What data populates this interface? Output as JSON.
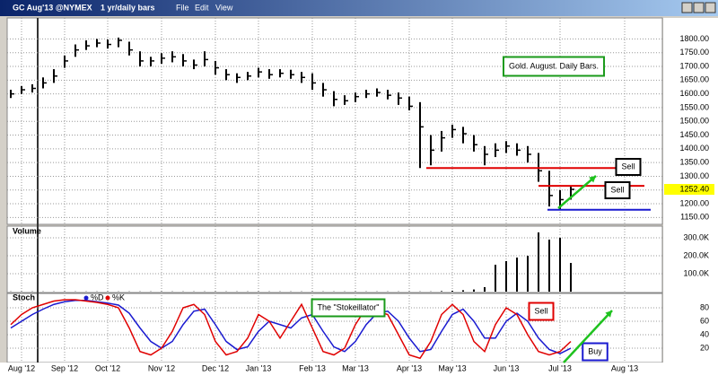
{
  "window": {
    "symbol": "GC Aug'13 @NYMEX",
    "interval": "1 yr/daily bars",
    "menus": [
      "File",
      "Edit",
      "View"
    ]
  },
  "chart_data": [
    {
      "type": "ohlc",
      "color": "#000000",
      "high": [
        1615,
        1628,
        1635,
        1660,
        1690,
        1740,
        1780,
        1795,
        1800,
        1798,
        1805,
        1790,
        1755,
        1735,
        1748,
        1755,
        1745,
        1725,
        1755,
        1720,
        1690,
        1675,
        1680,
        1695,
        1690,
        1690,
        1688,
        1680,
        1675,
        1640,
        1610,
        1595,
        1605,
        1615,
        1620,
        1615,
        1605,
        1590,
        1570,
        1450,
        1465,
        1488,
        1480,
        1450,
        1410,
        1420,
        1428,
        1420,
        1410,
        1385,
        1320,
        1250,
        1262,
        null,
        null,
        null,
        null,
        null,
        null
      ],
      "low": [
        1585,
        1600,
        1605,
        1620,
        1640,
        1695,
        1735,
        1760,
        1770,
        1765,
        1770,
        1740,
        1700,
        1700,
        1710,
        1715,
        1700,
        1690,
        1700,
        1670,
        1650,
        1640,
        1650,
        1660,
        1655,
        1660,
        1655,
        1640,
        1615,
        1590,
        1555,
        1560,
        1570,
        1585,
        1590,
        1580,
        1560,
        1540,
        1330,
        1340,
        1390,
        1440,
        1420,
        1390,
        1340,
        1370,
        1385,
        1375,
        1350,
        1280,
        1190,
        1180,
        1215,
        null,
        null,
        null,
        null,
        null,
        null
      ],
      "close": [
        1600,
        1615,
        1620,
        1640,
        1665,
        1720,
        1760,
        1775,
        1785,
        1780,
        1795,
        1760,
        1720,
        1720,
        1730,
        1735,
        1720,
        1705,
        1725,
        1695,
        1670,
        1660,
        1665,
        1680,
        1670,
        1675,
        1670,
        1660,
        1640,
        1615,
        1580,
        1575,
        1590,
        1600,
        1605,
        1595,
        1585,
        1555,
        1480,
        1395,
        1440,
        1470,
        1455,
        1415,
        1380,
        1395,
        1410,
        1395,
        1380,
        1320,
        1230,
        1215,
        1252.4,
        null,
        null,
        null,
        null,
        null,
        null
      ],
      "last_price": {
        "value": 1252.4,
        "label": "1252.40"
      },
      "ylim": [
        1125,
        1870
      ],
      "yticks": [
        {
          "value": 1150,
          "label": "1150.00"
        },
        {
          "value": 1200,
          "label": "1200.00"
        },
        {
          "value": 1250,
          "label": "1250.00"
        },
        {
          "value": 1300,
          "label": "1300.00"
        },
        {
          "value": 1350,
          "label": "1350.00"
        },
        {
          "value": 1400,
          "label": "1400.00"
        },
        {
          "value": 1450,
          "label": "1450.00"
        },
        {
          "value": 1500,
          "label": "1500.00"
        },
        {
          "value": 1550,
          "label": "1550.00"
        },
        {
          "value": 1600,
          "label": "1600.00"
        },
        {
          "value": 1650,
          "label": "1650.00"
        },
        {
          "value": 1700,
          "label": "1700.00"
        },
        {
          "value": 1750,
          "label": "1750.00"
        },
        {
          "value": 1800,
          "label": "1800.00"
        }
      ],
      "hlines": [
        {
          "value": 1330,
          "color": "#e00000"
        },
        {
          "value": 1265,
          "color": "#e00000"
        },
        {
          "value": 1178,
          "color": "#1a1ad0"
        }
      ],
      "annotations": [
        "Gold. August. Daily Bars.",
        "Sell",
        "Sell"
      ],
      "grid": true
    },
    {
      "type": "bar",
      "title": "Volume",
      "color": "#000000",
      "values": [
        1000,
        1000,
        1000,
        1000,
        1000,
        1000,
        1000,
        1000,
        1000,
        1000,
        1000,
        1000,
        1000,
        1000,
        1000,
        1000,
        1000,
        1000,
        1000,
        1000,
        1000,
        1000,
        1000,
        1000,
        1000,
        1000,
        1000,
        1000,
        1000,
        1000,
        1000,
        1000,
        1000,
        1000,
        1000,
        1000,
        1000,
        1000,
        1000,
        1000,
        3000,
        5000,
        8000,
        12000,
        25000,
        150000,
        170000,
        190000,
        200000,
        330000,
        290000,
        300000,
        160000,
        null,
        null,
        null,
        null,
        null,
        null
      ],
      "ylim": [
        0,
        355000
      ],
      "yticks": [
        {
          "value": 100000,
          "label": "100.0K"
        },
        {
          "value": 200000,
          "label": "200.0K"
        },
        {
          "value": 300000,
          "label": "300.0K"
        }
      ],
      "grid": true
    },
    {
      "type": "line",
      "title": "Stoch",
      "categories": [
        null,
        "Aug '12",
        null,
        null,
        null,
        "Sep '12",
        null,
        null,
        null,
        "Oct '12",
        null,
        null,
        null,
        null,
        "Nov '12",
        null,
        null,
        null,
        null,
        "Dec '12",
        null,
        null,
        null,
        "Jan '13",
        null,
        null,
        null,
        null,
        "Feb '13",
        null,
        null,
        null,
        "Mar '13",
        null,
        null,
        null,
        null,
        "Apr '13",
        null,
        null,
        null,
        "May '13",
        null,
        null,
        null,
        null,
        "Jun '13",
        null,
        null,
        null,
        null,
        "Jul '13",
        null,
        null,
        null,
        null,
        null,
        "Aug '13",
        null
      ],
      "series": [
        {
          "name": "%D",
          "color": "#1a1ad0",
          "values": [
            50,
            60,
            70,
            78,
            85,
            89,
            91,
            91,
            89,
            87,
            84,
            72,
            50,
            30,
            20,
            30,
            55,
            75,
            78,
            55,
            30,
            18,
            22,
            45,
            60,
            55,
            50,
            65,
            70,
            45,
            22,
            15,
            30,
            55,
            72,
            75,
            60,
            35,
            15,
            18,
            45,
            70,
            78,
            60,
            35,
            35,
            60,
            72,
            60,
            35,
            18,
            12,
            20,
            null,
            null,
            null,
            null,
            null,
            null
          ]
        },
        {
          "name": "%K",
          "color": "#e00000",
          "values": [
            55,
            70,
            80,
            85,
            90,
            92,
            92,
            90,
            88,
            85,
            80,
            50,
            15,
            10,
            20,
            45,
            80,
            85,
            70,
            30,
            10,
            15,
            35,
            70,
            60,
            35,
            60,
            85,
            50,
            15,
            10,
            20,
            55,
            80,
            75,
            70,
            40,
            10,
            5,
            30,
            70,
            85,
            70,
            30,
            15,
            55,
            80,
            70,
            40,
            15,
            10,
            15,
            30,
            null,
            null,
            null,
            null,
            null,
            null
          ]
        }
      ],
      "ylim": [
        0,
        100
      ],
      "yticks": [
        20,
        40,
        60,
        80
      ],
      "annotations": [
        "The \"Stokeillator\"",
        "Sell",
        "Buy"
      ],
      "grid": true
    }
  ]
}
